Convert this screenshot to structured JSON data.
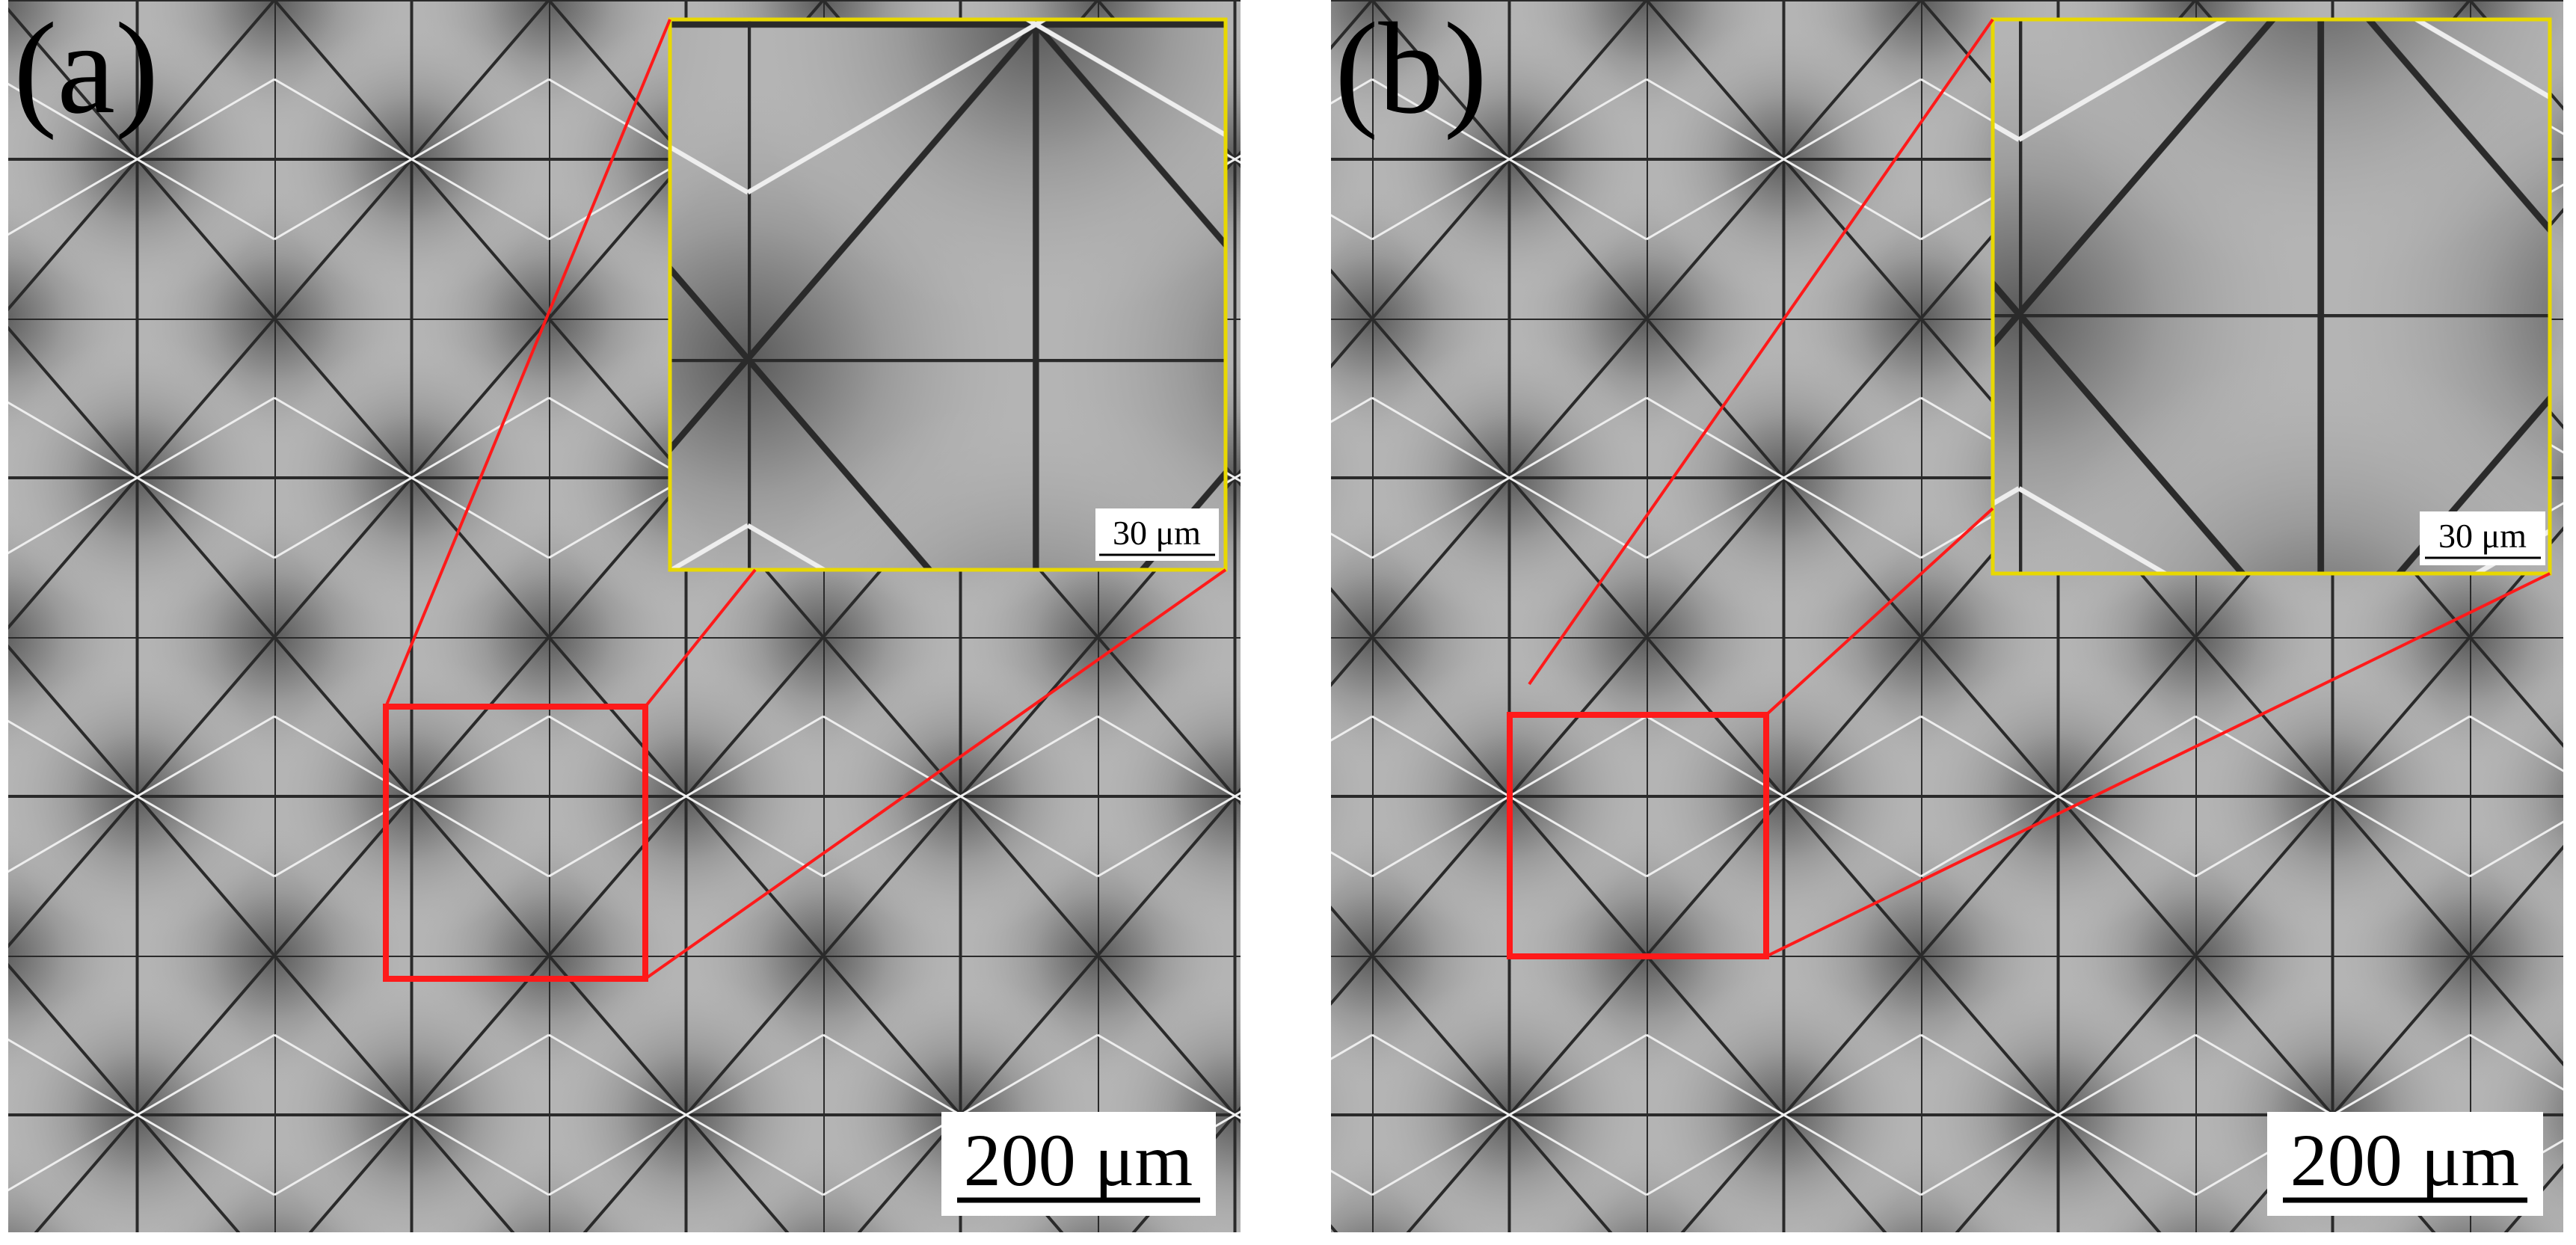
{
  "panels": [
    {
      "label": "(a)",
      "scale_bar": "200 μm",
      "inset_scale_bar": "30 μm"
    },
    {
      "label": "(b)",
      "scale_bar": "200 μm",
      "inset_scale_bar": "30 μm"
    }
  ]
}
